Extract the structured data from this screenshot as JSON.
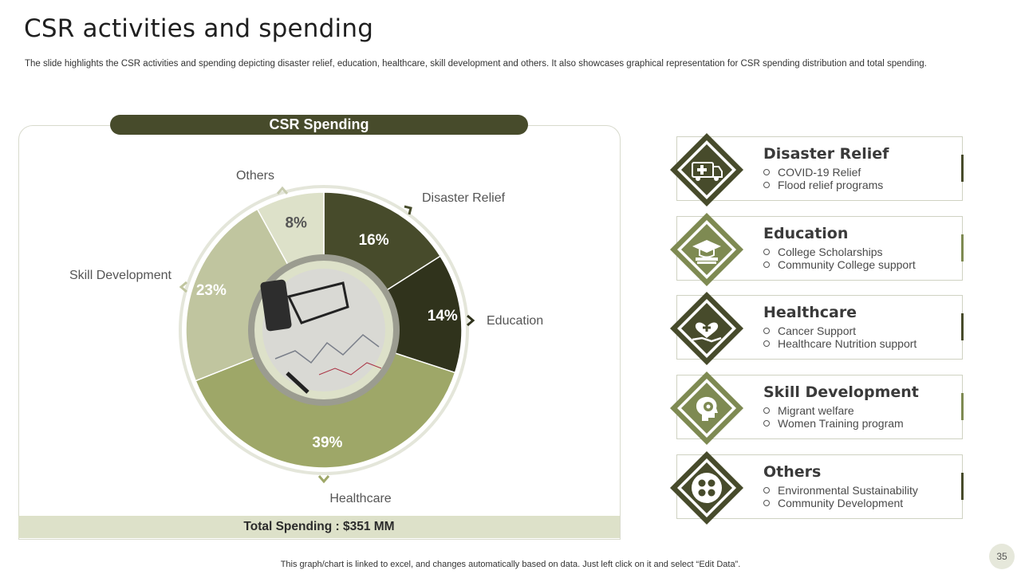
{
  "slide": {
    "title": "CSR activities and spending",
    "subtitle": "The slide highlights the CSR activities and spending depicting disaster relief, education, healthcare, skill development and others. It also showcases graphical representation for CSR spending distribution and total spending.",
    "footer": "This graph/chart is linked to excel,  and changes automatically based on data. Just left click on it and select “Edit Data”.",
    "page_number": "35"
  },
  "chart_panel": {
    "header": "CSR Spending",
    "total": "Total Spending : $351 MM"
  },
  "colors": {
    "dark": "#474b2b",
    "darker": "#30331c",
    "olive": "#9ea768",
    "light": "#c0c59f",
    "pale": "#dde1c9",
    "accent_medium": "#7e8a52"
  },
  "chart_data": {
    "type": "pie",
    "title": "CSR Spending",
    "slices": [
      {
        "label": "Disaster Relief",
        "value": 16,
        "display": "16%",
        "color": "#474b2b"
      },
      {
        "label": "Education",
        "value": 14,
        "display": "14%",
        "color": "#30331c"
      },
      {
        "label": "Healthcare",
        "value": 39,
        "display": "39%",
        "color": "#9ea768"
      },
      {
        "label": "Skill Development",
        "value": 23,
        "display": "23%",
        "color": "#c0c59f"
      },
      {
        "label": "Others",
        "value": 8,
        "display": "8%",
        "color": "#dde1c9"
      }
    ]
  },
  "categories": [
    {
      "name": "Disaster Relief",
      "icon": "ambulance-icon",
      "items": [
        "COVID-19 Relief",
        "Flood relief programs"
      ],
      "color": "#474b2b"
    },
    {
      "name": "Education",
      "icon": "graduation-cap-icon",
      "items": [
        "College Scholarships",
        "Community College support"
      ],
      "color": "#7e8a52"
    },
    {
      "name": "Healthcare",
      "icon": "heart-care-icon",
      "items": [
        "Cancer Support",
        "Healthcare Nutrition support"
      ],
      "color": "#474b2b"
    },
    {
      "name": "Skill Development",
      "icon": "head-gear-icon",
      "items": [
        "Migrant welfare",
        "Women Training program"
      ],
      "color": "#7e8a52"
    },
    {
      "name": "Others",
      "icon": "four-dots-icon",
      "items": [
        "Environmental Sustainability",
        "Community Development"
      ],
      "color": "#474b2b"
    }
  ]
}
